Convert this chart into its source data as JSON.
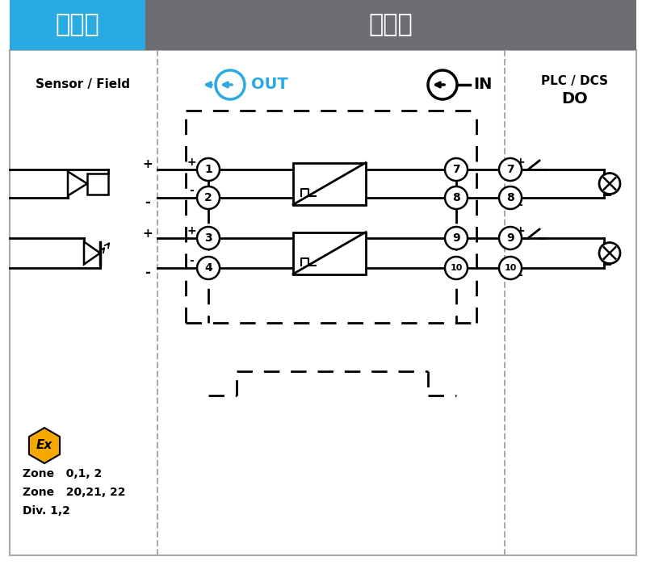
{
  "title_left": "危险区",
  "title_right": "安全区",
  "title_left_bg": "#29ABE2",
  "title_right_bg": "#6D6E71",
  "title_text_color": "#FFFFFF",
  "col1_label": "Sensor / Field",
  "col3_label": "PLC / DCS",
  "col3_sublabel": "DO",
  "out_label": "OUT",
  "in_label": "IN",
  "out_color": "#29ABE2",
  "zone_text": [
    "Zone   0,1, 2",
    "Zone   20,21, 22",
    "Div. 1,2"
  ],
  "ex_bg": "#F5A800",
  "fig_width": 8.0,
  "fig_height": 7.0,
  "dpi": 100
}
